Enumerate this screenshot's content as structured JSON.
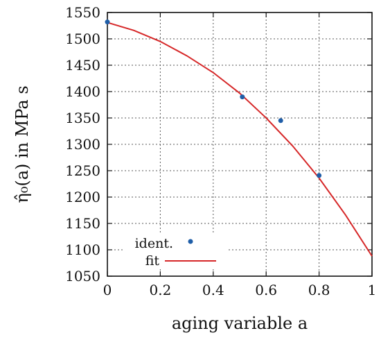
{
  "chart_data": {
    "type": "scatter",
    "title": "",
    "xlabel": "aging variable a",
    "ylabel": "η̂₀(a) in MPa s",
    "xlim": [
      0,
      1
    ],
    "ylim": [
      1050,
      1550
    ],
    "x_ticks": [
      "0",
      "0.2",
      "0.4",
      "0.6",
      "0.8",
      "1"
    ],
    "y_ticks": [
      "1050",
      "1100",
      "1150",
      "1200",
      "1250",
      "1300",
      "1350",
      "1400",
      "1450",
      "1500",
      "1550"
    ],
    "grid": true,
    "legend_position": "bottom-left",
    "series": [
      {
        "name": "ident.",
        "kind": "points",
        "color": "#1f5ea8",
        "x": [
          0.0,
          0.51,
          0.655,
          0.8
        ],
        "y": [
          1532,
          1390,
          1345,
          1241
        ]
      },
      {
        "name": "fit",
        "kind": "line",
        "color": "#d62728",
        "x": [
          0.0,
          0.1,
          0.2,
          0.3,
          0.4,
          0.5,
          0.6,
          0.7,
          0.8,
          0.9,
          1.0
        ],
        "y": [
          1531,
          1516,
          1495,
          1468,
          1436,
          1397,
          1350,
          1297,
          1236,
          1166,
          1088
        ]
      }
    ]
  }
}
